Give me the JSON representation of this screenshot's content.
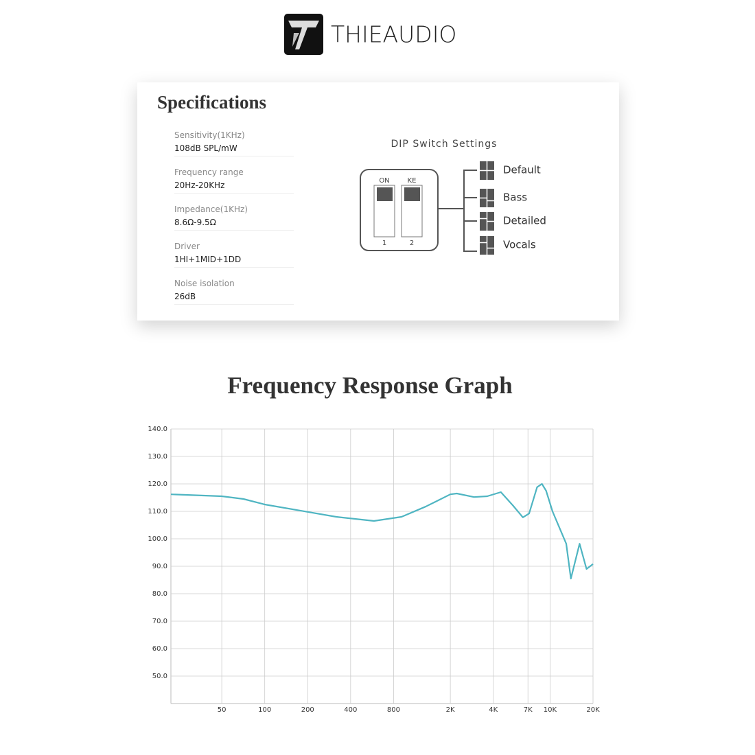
{
  "header": {
    "brand": "THIEAUDIO"
  },
  "specs": {
    "title": "Specifications",
    "items": [
      {
        "label": "Sensitivity(1KHz)",
        "value": "108dB SPL/mW"
      },
      {
        "label": "Frequency range",
        "value": "20Hz-20KHz"
      },
      {
        "label": "Impedance(1KHz)",
        "value": "8.6Ω-9.5Ω"
      },
      {
        "label": "Driver",
        "value": "1HI+1MID+1DD"
      },
      {
        "label": "Noise isolation",
        "value": "26dB"
      }
    ]
  },
  "dip": {
    "title": "DIP Switch Settings",
    "switch_labels": [
      "ON",
      "KE"
    ],
    "switch_numbers": [
      "1",
      "2"
    ],
    "modes": [
      "Default",
      "Bass",
      "Detailed",
      "Vocals"
    ]
  },
  "chart_data": {
    "type": "line",
    "title": "Frequency Response Graph",
    "color": "#4fb5c2",
    "log_x": true,
    "grid": true,
    "x": [
      22,
      50,
      71,
      100,
      200,
      317,
      583,
      910,
      1340,
      2000,
      2220,
      2930,
      3630,
      4520,
      5520,
      6450,
      7130,
      8110,
      8770,
      9380,
      10400,
      12980,
      13990,
      16100,
      18010,
      20000
    ],
    "values": [
      116.2,
      115.5,
      114.5,
      112.5,
      109.8,
      108,
      106.5,
      108,
      111.7,
      116.2,
      116.5,
      115.2,
      115.5,
      117,
      112,
      107.8,
      109.2,
      118.8,
      120,
      117.5,
      110,
      98.2,
      85.5,
      98.2,
      89,
      90.8
    ],
    "xlim": [
      22,
      20000
    ],
    "xticks": [
      50,
      100,
      200,
      400,
      800,
      {
        "value": 2000,
        "label": "2K"
      },
      {
        "value": 4000,
        "label": "4K"
      },
      {
        "value": 7000,
        "label": "7K"
      },
      {
        "value": 10000,
        "label": "10K"
      },
      {
        "value": 20000,
        "label": "20K"
      }
    ],
    "ylim": [
      40,
      140
    ],
    "yticks": [
      {
        "value": 50,
        "label": "50.0"
      },
      {
        "value": 60,
        "label": "60.0"
      },
      {
        "value": 70,
        "label": "70.0"
      },
      {
        "value": 80,
        "label": "80.0"
      },
      {
        "value": 90,
        "label": "90.0"
      },
      {
        "value": 100,
        "label": "100.0"
      },
      {
        "value": 110,
        "label": "110.0"
      },
      {
        "value": 120,
        "label": "120.0"
      },
      {
        "value": 130,
        "label": "130.0"
      },
      {
        "value": 140,
        "label": "140.0"
      }
    ]
  }
}
